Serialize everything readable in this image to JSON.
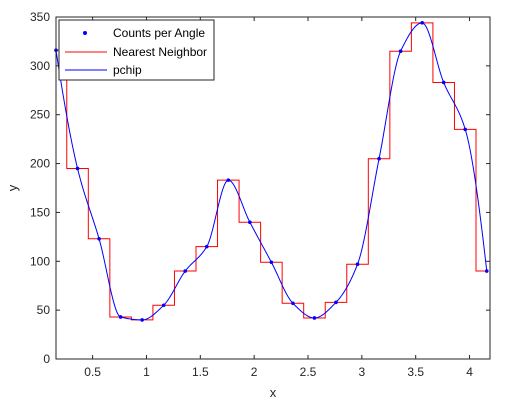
{
  "chart_data": {
    "type": "line",
    "xlabel": "x",
    "ylabel": "y",
    "xlim": [
      0.16,
      4.19
    ],
    "ylim": [
      0,
      350
    ],
    "xticks": [
      0.5,
      1,
      1.5,
      2,
      2.5,
      3,
      3.5,
      4
    ],
    "xtick_labels": [
      "0.5",
      "1",
      "1.5",
      "2",
      "2.5",
      "3",
      "3.5",
      "4"
    ],
    "yticks": [
      0,
      50,
      100,
      150,
      200,
      250,
      300,
      350
    ],
    "ytick_labels": [
      "0",
      "50",
      "100",
      "150",
      "200",
      "250",
      "300",
      "350"
    ],
    "grid": false,
    "legend_position": "top-left",
    "series": [
      {
        "name": "Counts per Angle",
        "style": "points",
        "color": "#0000ff",
        "x": [
          0.16,
          0.36,
          0.56,
          0.76,
          0.96,
          1.16,
          1.36,
          1.56,
          1.76,
          1.96,
          2.16,
          2.36,
          2.56,
          2.76,
          2.96,
          3.16,
          3.36,
          3.56,
          3.76,
          3.96,
          4.16
        ],
        "y": [
          316,
          195,
          123,
          43,
          40,
          55,
          90,
          115,
          183,
          140,
          99,
          57,
          42,
          58,
          97,
          205,
          315,
          344,
          283,
          235,
          90
        ]
      },
      {
        "name": "Nearest Neighbor",
        "style": "step",
        "color": "#ff0000"
      },
      {
        "name": "pchip",
        "style": "smooth",
        "color": "#0000ff"
      }
    ]
  }
}
